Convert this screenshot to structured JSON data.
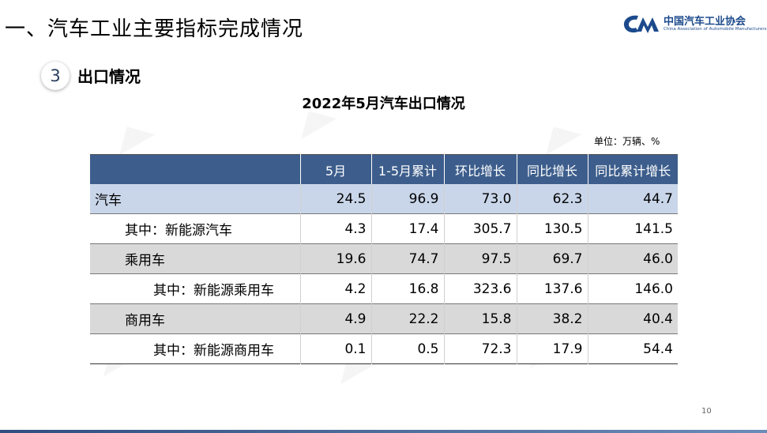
{
  "header": {
    "title": "一、汽车工业主要指标完成情况",
    "logo": {
      "name_cn": "中国汽车工业协会",
      "name_en": "China Association of Automobile Manufacturers",
      "icon": "caam-logo-icon",
      "color": "#1c4a8c"
    }
  },
  "section": {
    "number": "3",
    "title": "出口情况"
  },
  "table": {
    "title": "2022年5月汽车出口情况",
    "unit": "单位：万辆、%",
    "header_color": "#3d5e8c",
    "columns": [
      "",
      "5月",
      "1-5月累计",
      "环比增长",
      "同比增长",
      "同比累计增长"
    ],
    "rows": [
      {
        "label": "汽车",
        "values": [
          "24.5",
          "96.9",
          "73.0",
          "62.3",
          "44.7"
        ]
      },
      {
        "label": "其中：新能源汽车",
        "values": [
          "4.3",
          "17.4",
          "305.7",
          "130.5",
          "141.5"
        ]
      },
      {
        "label": "乘用车",
        "values": [
          "19.6",
          "74.7",
          "97.5",
          "69.7",
          "46.0"
        ]
      },
      {
        "label": "其中：新能源乘用车",
        "values": [
          "4.2",
          "16.8",
          "323.6",
          "137.6",
          "146.0"
        ]
      },
      {
        "label": "商用车",
        "values": [
          "4.9",
          "22.2",
          "15.8",
          "38.2",
          "40.4"
        ]
      },
      {
        "label": "其中：新能源商用车",
        "values": [
          "0.1",
          "0.5",
          "72.3",
          "17.9",
          "54.4"
        ]
      }
    ]
  },
  "footer": {
    "page_number": "10"
  }
}
